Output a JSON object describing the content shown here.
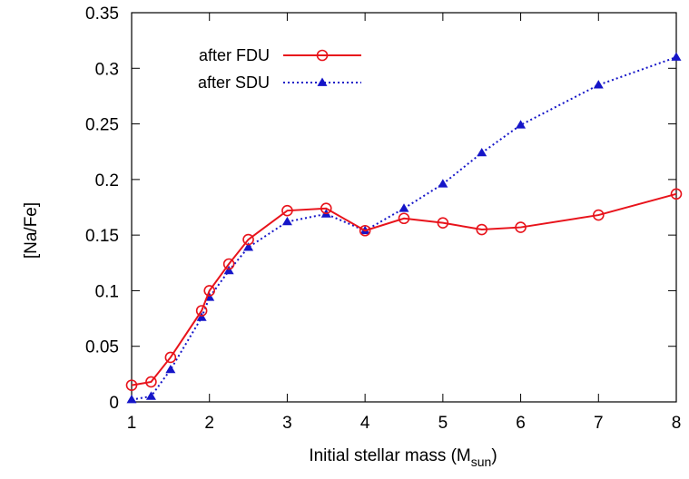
{
  "chart_data": {
    "type": "line",
    "title": "",
    "xlabel": "Initial stellar mass (M",
    "xlabel_sub": "sun",
    "xlabel_close": ")",
    "ylabel": "[Na/Fe]",
    "xlim": [
      1,
      8
    ],
    "ylim": [
      0,
      0.35
    ],
    "xticks": [
      1,
      2,
      3,
      4,
      5,
      6,
      7,
      8
    ],
    "yticks": [
      0,
      0.05,
      0.1,
      0.15,
      0.2,
      0.25,
      0.3,
      0.35
    ],
    "ytick_labels": [
      "0",
      "0.05",
      "0.1",
      "0.15",
      "0.2",
      "0.25",
      "0.3",
      "0.35"
    ],
    "xtick_labels": [
      "1",
      "2",
      "3",
      "4",
      "5",
      "6",
      "7",
      "8"
    ],
    "grid": false,
    "legend_position": "top-left",
    "series": [
      {
        "name": "after FDU",
        "color": "#e8131b",
        "line_style": "solid",
        "marker": "open-circle",
        "x": [
          1.0,
          1.25,
          1.5,
          1.9,
          2.0,
          2.25,
          2.5,
          3.0,
          3.5,
          4.0,
          4.5,
          5.0,
          5.5,
          6.0,
          7.0,
          8.0
        ],
        "y": [
          0.015,
          0.018,
          0.04,
          0.082,
          0.1,
          0.124,
          0.146,
          0.172,
          0.174,
          0.154,
          0.165,
          0.161,
          0.155,
          0.157,
          0.168,
          0.187
        ]
      },
      {
        "name": "after SDU",
        "color": "#1515c8",
        "line_style": "dotted",
        "marker": "filled-triangle",
        "x": [
          1.0,
          1.25,
          1.5,
          1.9,
          2.0,
          2.25,
          2.5,
          3.0,
          3.5,
          4.0,
          4.5,
          5.0,
          5.5,
          6.0,
          7.0,
          8.0
        ],
        "y": [
          0.002,
          0.005,
          0.029,
          0.076,
          0.094,
          0.118,
          0.139,
          0.162,
          0.169,
          0.154,
          0.174,
          0.196,
          0.224,
          0.249,
          0.285,
          0.31
        ]
      }
    ]
  }
}
